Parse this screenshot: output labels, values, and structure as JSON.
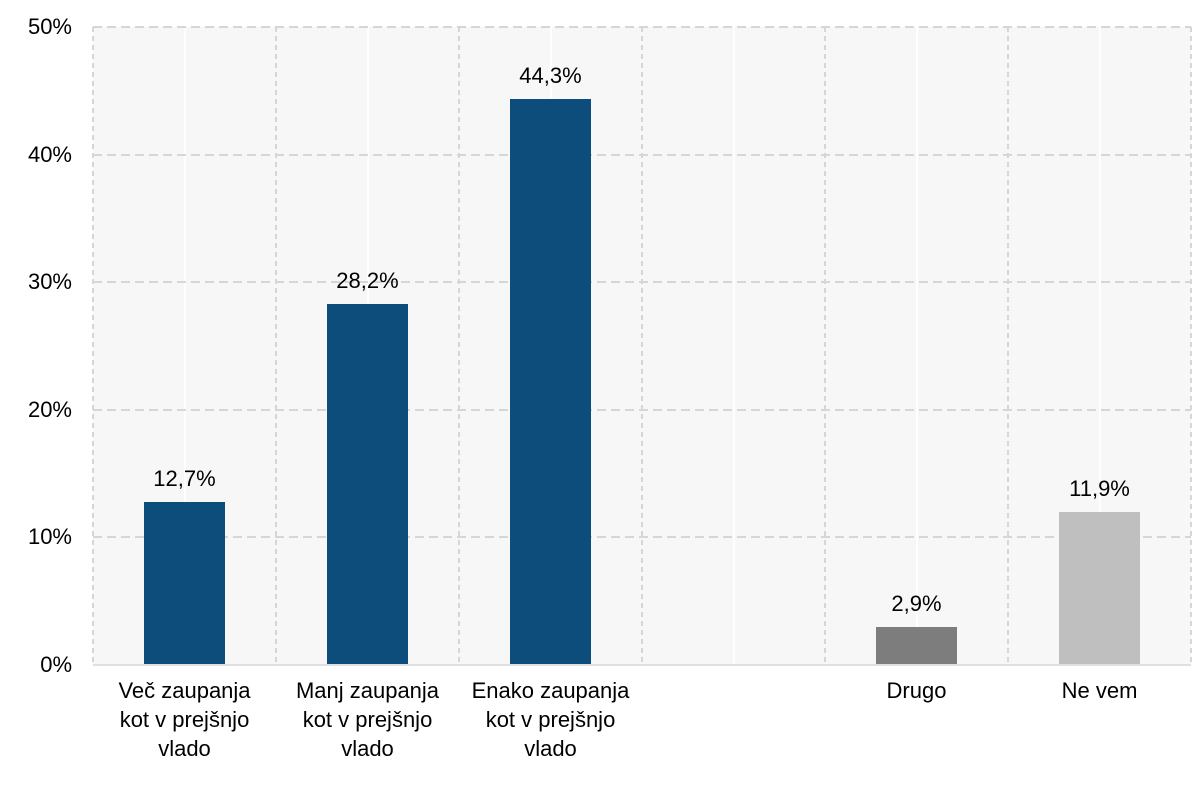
{
  "chart_data": {
    "type": "bar",
    "title": "",
    "xlabel": "",
    "ylabel": "",
    "ylim": [
      0,
      50
    ],
    "ytick_values": [
      0,
      10,
      20,
      30,
      40,
      50
    ],
    "ytick_labels": [
      "0%",
      "10%",
      "20%",
      "30%",
      "40%",
      "50%"
    ],
    "grid": "dashed major gridlines horizontal and vertical, light gray plot background, faint solid lines at category centers",
    "legend": "none",
    "decimal_separator": ",",
    "categories": [
      "Več zaupanja kot v prejšnjo vlado",
      "Manj zaupanja kot v prejšnjo vlado",
      "Enako zaupanja kot v prejšnjo vlado",
      "",
      "Drugo",
      "Ne vem"
    ],
    "category_label_lines": [
      [
        "Več zaupanja",
        "kot v prejšnjo",
        "vlado"
      ],
      [
        "Manj zaupanja",
        "kot v prejšnjo",
        "vlado"
      ],
      [
        "Enako zaupanja",
        "kot v prejšnjo",
        "vlado"
      ],
      [],
      [
        "Drugo"
      ],
      [
        "Ne vem"
      ]
    ],
    "values": [
      12.7,
      28.2,
      44.3,
      null,
      2.9,
      11.9
    ],
    "value_labels": [
      "12,7%",
      "28,2%",
      "44,3%",
      "",
      "2,9%",
      "11,9%"
    ],
    "bar_colors": [
      "#0d4d7c",
      "#0d4d7c",
      "#0d4d7c",
      null,
      "#7d7d7d",
      "#bfbfbf"
    ],
    "colors": {
      "bar_blue": "#0d4d7c",
      "bar_dark_gray": "#7d7d7d",
      "bar_light_gray": "#bfbfbf",
      "plot_background": "#f7f7f7",
      "gridline": "#d6d6d6",
      "axis_line": "#e0e0e0",
      "text": "#000000",
      "page_background": "#ffffff"
    }
  }
}
